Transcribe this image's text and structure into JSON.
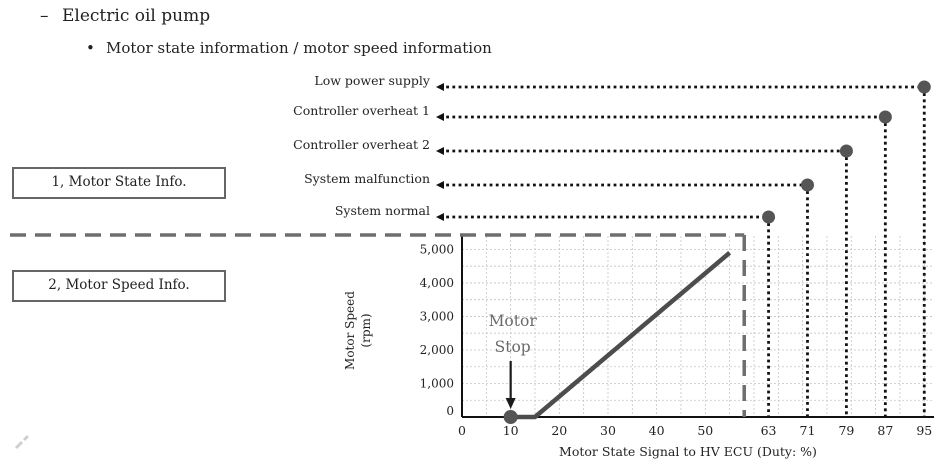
{
  "header": {
    "dash": "–",
    "title": "Electric oil pump",
    "bullet": "•",
    "subtitle": "Motor state information / motor speed information"
  },
  "boxes": {
    "motor_state": "1, Motor State Info.",
    "motor_speed": "2, Motor Speed Info."
  },
  "chart_data": {
    "type": "line",
    "xlabel": "Motor State Signal to HV ECU (Duty: %)",
    "ylabel": "Motor Speed (rpm)",
    "ylabel_lines": [
      "Motor Speed",
      "(rpm)"
    ],
    "xlim": [
      0,
      97
    ],
    "ylim": [
      0,
      5400
    ],
    "x_ticks": [
      0,
      10,
      20,
      30,
      40,
      50,
      63,
      71,
      79,
      87,
      95
    ],
    "y_ticks": [
      0,
      1000,
      2000,
      3000,
      4000,
      5000
    ],
    "y_tick_labels": [
      "0",
      "1,000",
      "2,000",
      "3,000",
      "4,000",
      "5,000"
    ],
    "grid": true,
    "series": [
      {
        "x": [
          10,
          15,
          55
        ],
        "y": [
          0,
          0,
          4900
        ]
      }
    ],
    "speed_info_limit_x": 58,
    "states": [
      {
        "label": "System normal",
        "duty": 63
      },
      {
        "label": "System malfunction",
        "duty": 71
      },
      {
        "label": "Controller overheat 2",
        "duty": 79
      },
      {
        "label": "Controller overheat 1",
        "duty": 87
      },
      {
        "label": "Low power supply",
        "duty": 95
      }
    ],
    "annotation": {
      "lines": [
        "Motor",
        "Stop"
      ],
      "x": 10,
      "y": 0
    }
  },
  "colors": {
    "line": "#4d4d4d",
    "dot": "#555555",
    "grid": "#c4c4c4",
    "dash": "#6e6e6e",
    "annotation": "#6a6a6a"
  },
  "icons": {
    "corner": "pen-icon"
  }
}
